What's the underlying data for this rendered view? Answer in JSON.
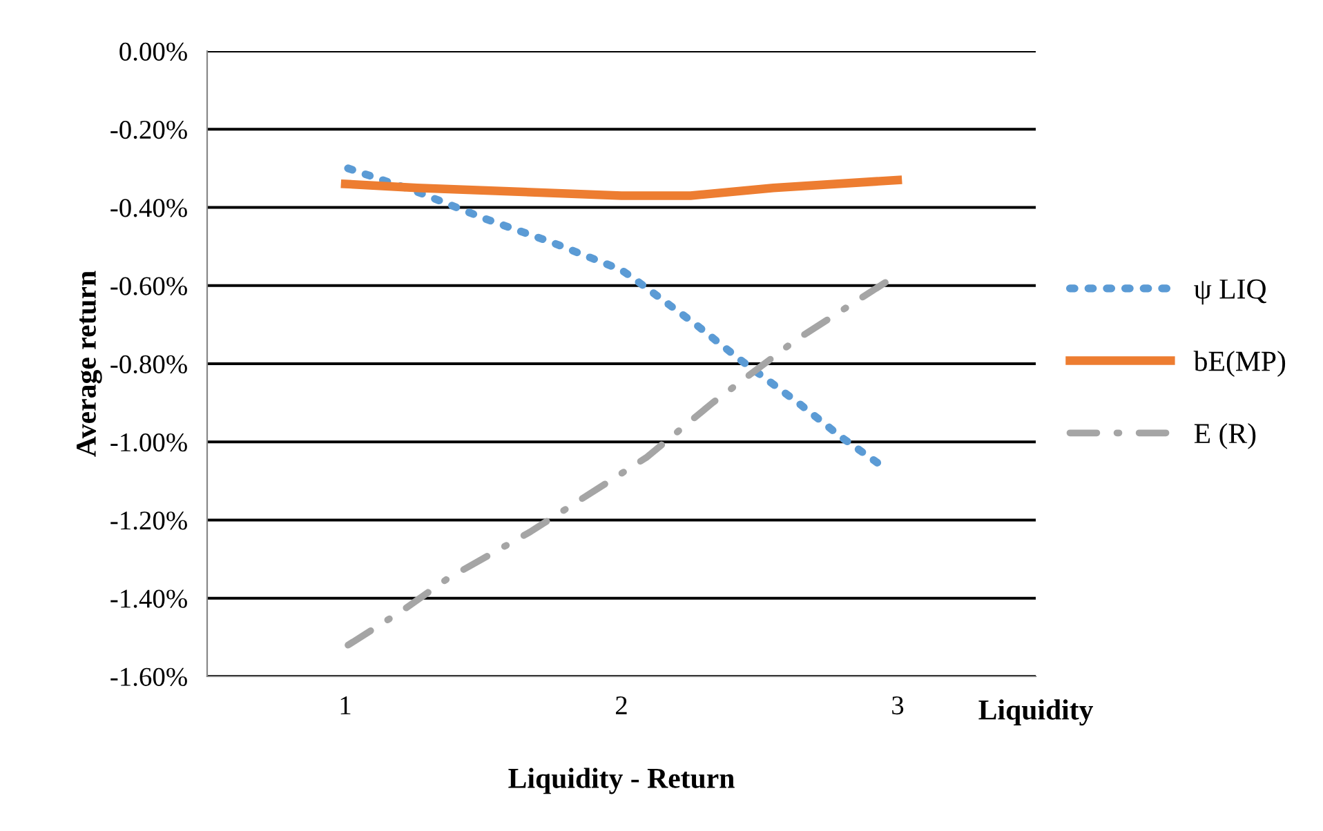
{
  "chart_data": {
    "type": "line",
    "ylabel": "Average return",
    "xlabel": "Liquidity - Return",
    "annotations": [
      "Liquidity"
    ],
    "xlim": [
      0.5,
      3.5
    ],
    "xticks": [
      1,
      2,
      3
    ],
    "ylim": [
      -1.6,
      0
    ],
    "yticks": [
      {
        "value": -1.6,
        "label": "-1.60%"
      },
      {
        "value": -1.4,
        "label": "-1.40%"
      },
      {
        "value": -1.2,
        "label": "-1.20%"
      },
      {
        "value": -1.0,
        "label": "-1.00%"
      },
      {
        "value": -0.8,
        "label": "-0.80%"
      },
      {
        "value": -0.6,
        "label": "-0.60%"
      },
      {
        "value": -0.4,
        "label": "-0.40%"
      },
      {
        "value": -0.2,
        "label": "-0.20%"
      },
      {
        "value": 0,
        "label": "0.00%"
      }
    ],
    "grid": "y",
    "legend": "right",
    "series": [
      {
        "name": "ψ LIQ",
        "color": "#5b9bd5",
        "line_style": "dotted",
        "x": [
          1.01,
          1.26,
          1.51,
          1.75,
          2.0,
          2.06,
          2.27,
          2.43,
          2.64,
          2.8,
          2.96
        ],
        "values": [
          -0.3,
          -0.36,
          -0.43,
          -0.49,
          -0.56,
          -0.59,
          -0.7,
          -0.79,
          -0.9,
          -0.99,
          -1.07
        ]
      },
      {
        "name": "bE(MP)",
        "color": "#ed7d31",
        "line_style": "solid",
        "x": [
          1.0,
          1.26,
          2.0,
          2.25,
          2.55,
          3.0
        ],
        "values": [
          -0.34,
          -0.35,
          -0.37,
          -0.37,
          -0.35,
          -0.33
        ]
      },
      {
        "name": "E (R)",
        "color": "#a5a5a5",
        "line_style": "dashdot",
        "x": [
          1.01,
          1.21,
          1.37,
          1.67,
          2.09,
          2.33,
          2.63,
          2.96
        ],
        "values": [
          -1.52,
          -1.43,
          -1.35,
          -1.23,
          -1.04,
          -0.9,
          -0.74,
          -0.59
        ]
      }
    ]
  }
}
